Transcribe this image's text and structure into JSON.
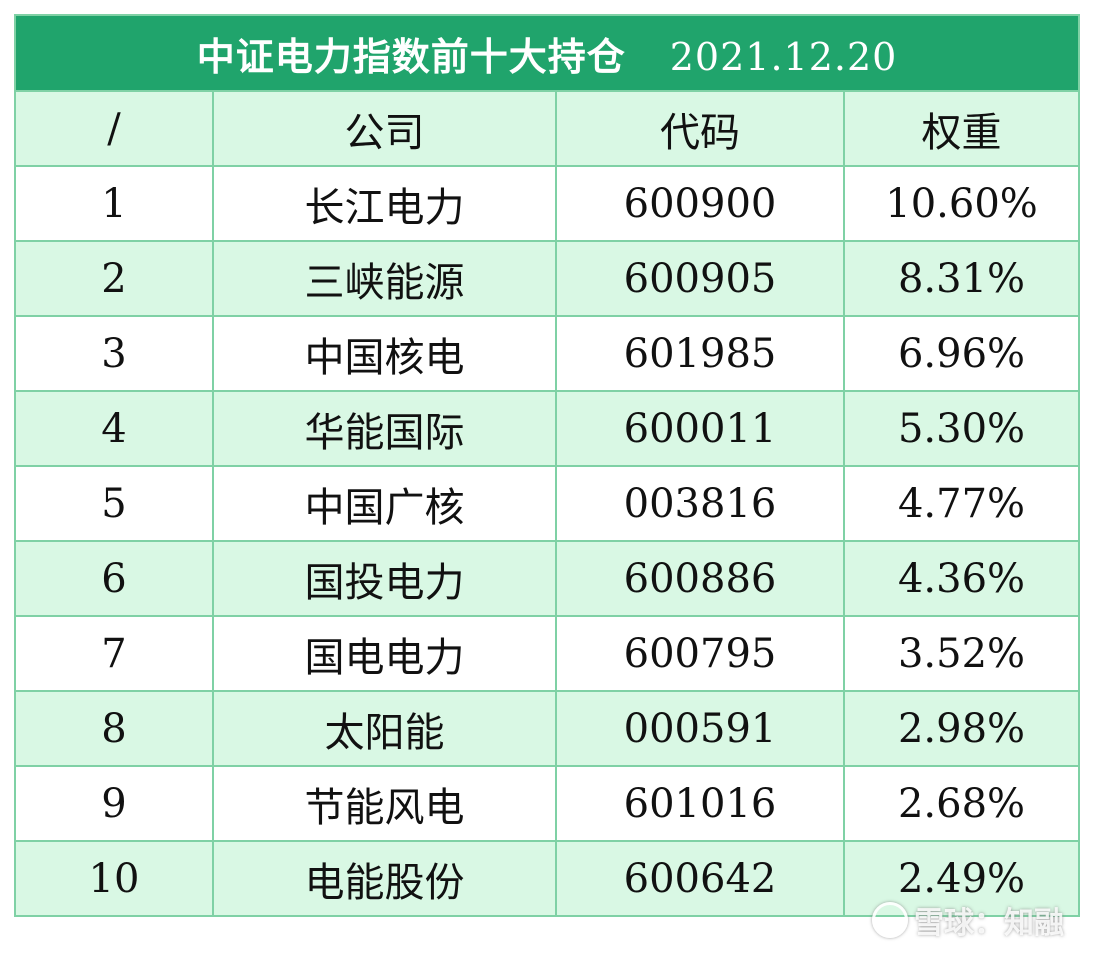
{
  "table": {
    "title": "中证电力指数前十大持仓",
    "date": "2021.12.20",
    "headers": [
      "/",
      "公司",
      "代码",
      "权重"
    ],
    "rows": [
      {
        "rank": "1",
        "company": "长江电力",
        "code": "600900",
        "weight": "10.60%"
      },
      {
        "rank": "2",
        "company": "三峡能源",
        "code": "600905",
        "weight": "8.31%"
      },
      {
        "rank": "3",
        "company": "中国核电",
        "code": "601985",
        "weight": "6.96%"
      },
      {
        "rank": "4",
        "company": "华能国际",
        "code": "600011",
        "weight": "5.30%"
      },
      {
        "rank": "5",
        "company": "中国广核",
        "code": "003816",
        "weight": "4.77%"
      },
      {
        "rank": "6",
        "company": "国投电力",
        "code": "600886",
        "weight": "4.36%"
      },
      {
        "rank": "7",
        "company": "国电电力",
        "code": "600795",
        "weight": "3.52%"
      },
      {
        "rank": "8",
        "company": "太阳能",
        "code": "000591",
        "weight": "2.98%"
      },
      {
        "rank": "9",
        "company": "节能风电",
        "code": "601016",
        "weight": "2.68%"
      },
      {
        "rank": "10",
        "company": "电能股份",
        "code": "600642",
        "weight": "2.49%"
      }
    ]
  },
  "watermark": {
    "text": "雪球：知融",
    "icon": "xueqiu-logo-icon"
  },
  "colors": {
    "title_bg": "#20a46c",
    "stripe_bg": "#d9f8e4",
    "border": "#7fd1a5"
  }
}
